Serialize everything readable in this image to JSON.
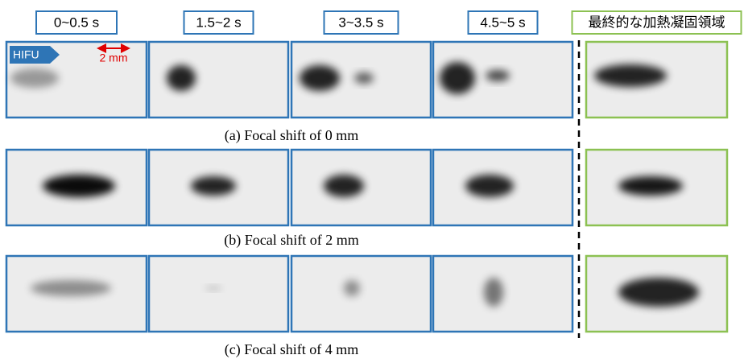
{
  "column_headers": [
    "0~0.5 s",
    "1.5~2 s",
    "3~3.5 s",
    "4.5~5 s",
    "最終的な加熱凝固領域"
  ],
  "rows": [
    {
      "caption": "(a) Focal shift of 0 mm"
    },
    {
      "caption": "(b) Focal shift of 2 mm"
    },
    {
      "caption": "(c) Focal shift of 4 mm"
    }
  ],
  "annotations": {
    "arrow_label": "HIFU",
    "scale_label": "2 mm"
  }
}
